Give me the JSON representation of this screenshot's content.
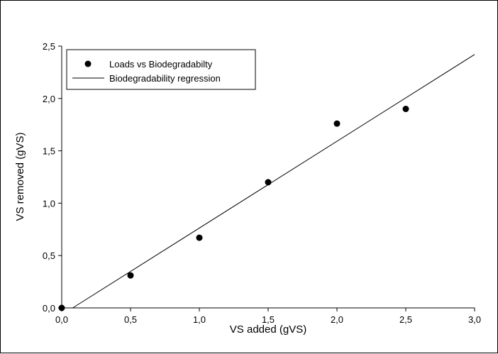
{
  "chart_data": {
    "type": "scatter",
    "title": "",
    "xlabel": "VS added (gVS)",
    "ylabel": "VS removed (gVS)",
    "xlim": [
      0,
      3.0
    ],
    "ylim": [
      0,
      2.5
    ],
    "x_ticks": [
      "0,0",
      "0,5",
      "1,0",
      "1,5",
      "2,0",
      "2,5",
      "3,0"
    ],
    "y_ticks": [
      "0,0",
      "0,5",
      "1,0",
      "1,5",
      "2,0",
      "2,5"
    ],
    "grid": false,
    "legend_position": "top-left",
    "series": [
      {
        "name": "Loads vs Biodegradabilty",
        "kind": "scatter",
        "marker": "filled-circle",
        "color": "#000000",
        "x": [
          0.0,
          0.5,
          1.0,
          1.5,
          2.0,
          2.5
        ],
        "y": [
          0.0,
          0.31,
          0.67,
          1.2,
          1.76,
          1.9
        ]
      },
      {
        "name": "Biodegradability regression",
        "kind": "line",
        "color": "#000000",
        "x": [
          0.08,
          3.0
        ],
        "y": [
          0.0,
          2.42
        ]
      }
    ]
  }
}
